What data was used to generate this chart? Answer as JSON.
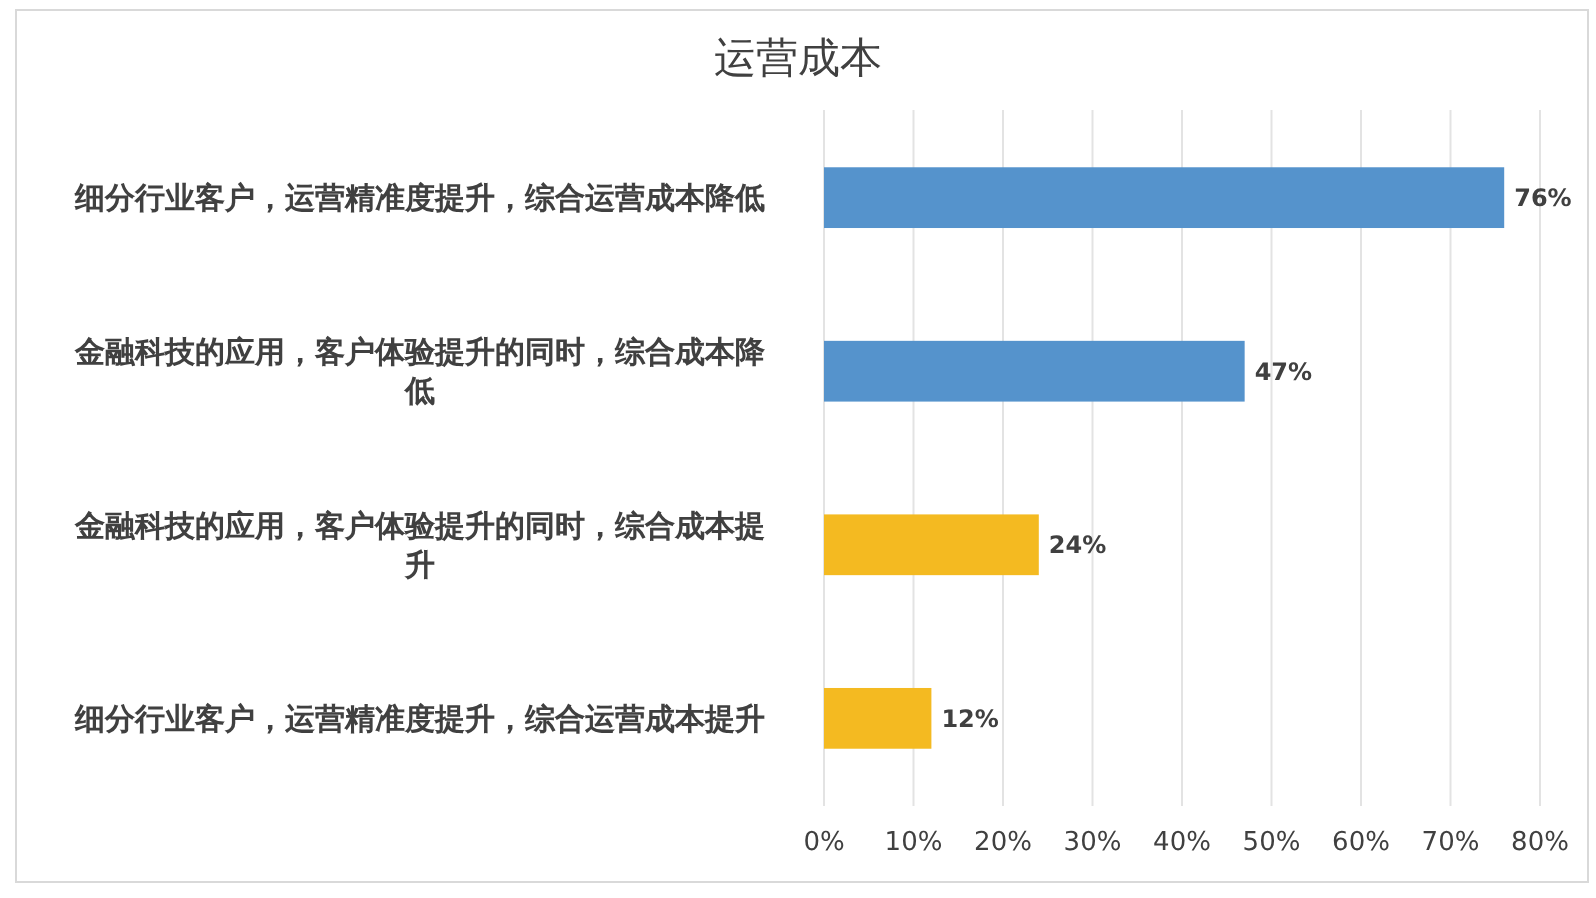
{
  "chart_data": {
    "type": "bar",
    "orientation": "horizontal",
    "title": "运营成本",
    "categories": [
      "细分行业客户，运营精准度提升，综合运营成本降低",
      "金融科技的应用，客户体验提升的同时，综合成本降低",
      "金融科技的应用，客户体验提升的同时，综合成本提升",
      "细分行业客户，运营精准度提升，综合运营成本提升"
    ],
    "values": [
      76,
      47,
      24,
      12
    ],
    "colors": [
      "#5593cc",
      "#5593cc",
      "#f4ba21",
      "#f4ba21"
    ],
    "value_labels": [
      "76%",
      "47%",
      "24%",
      "12%"
    ],
    "xlim": [
      0,
      80
    ],
    "xticks": [
      {
        "value": 0,
        "label": "0%"
      },
      {
        "value": 10,
        "label": "10%"
      },
      {
        "value": 20,
        "label": "20%"
      },
      {
        "value": 30,
        "label": "30%"
      },
      {
        "value": 40,
        "label": "40%"
      },
      {
        "value": 50,
        "label": "50%"
      },
      {
        "value": 60,
        "label": "60%"
      },
      {
        "value": 70,
        "label": "70%"
      },
      {
        "value": 80,
        "label": "80%"
      }
    ],
    "grid": "x"
  }
}
